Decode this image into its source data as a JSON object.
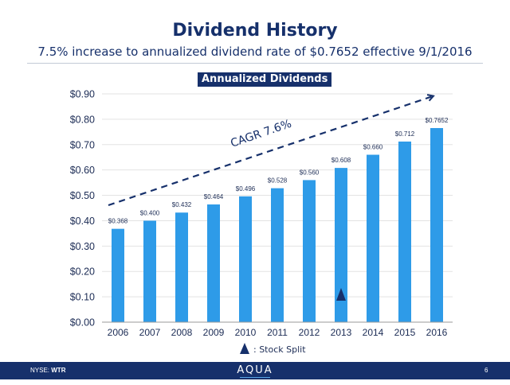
{
  "title": "Dividend History",
  "subtitle": "7.5% increase to annualized dividend rate of $0.7652 effective 9/1/2016",
  "chart_data": {
    "type": "bar",
    "title": "Annualized Dividends",
    "categories": [
      "2006",
      "2007",
      "2008",
      "2009",
      "2010",
      "2011",
      "2012",
      "2013",
      "2014",
      "2015",
      "2016"
    ],
    "values": [
      0.368,
      0.4,
      0.432,
      0.464,
      0.496,
      0.528,
      0.56,
      0.608,
      0.66,
      0.712,
      0.7652
    ],
    "data_labels": [
      "$0.368",
      "$0.400",
      "$0.432",
      "$0.464",
      "$0.496",
      "$0.528",
      "$0.560",
      "$0.608",
      "$0.660",
      "$0.712",
      "$0.7652"
    ],
    "ylim": [
      0,
      0.9
    ],
    "yticks": [
      0,
      0.1,
      0.2,
      0.3,
      0.4,
      0.5,
      0.6,
      0.7,
      0.8,
      0.9
    ],
    "ytick_labels": [
      "$0.00",
      "$0.10",
      "$0.20",
      "$0.30",
      "$0.40",
      "$0.50",
      "$0.60",
      "$0.70",
      "$0.80",
      "$0.90"
    ],
    "bar_color": "#2e9be8",
    "gridlines": true,
    "annotation": "CAGR 7.6%",
    "stock_split_year": "2013"
  },
  "legend": {
    "stock_split_label": ": Stock Split"
  },
  "footer": {
    "ticker_prefix": "NYSE:",
    "ticker": "WTR",
    "logo": "AQUA",
    "page": "6"
  },
  "colors": {
    "navy": "#16306b",
    "bar": "#2e9be8",
    "grid": "#e3e3e3"
  }
}
